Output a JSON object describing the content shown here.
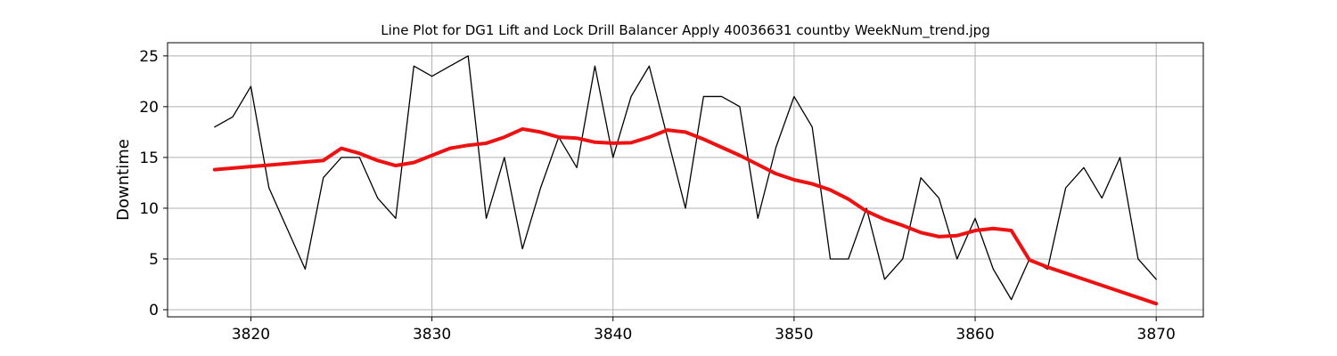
{
  "chart_data": {
    "type": "line",
    "title": "Line Plot for DG1 Lift and Lock Drill Balancer Apply 40036631 countby WeekNum_trend.jpg",
    "xlabel": "",
    "ylabel": "Downtime",
    "xlim": [
      3815.4,
      3872.6
    ],
    "ylim": [
      -0.7,
      26.3
    ],
    "x_ticks": [
      3820,
      3830,
      3840,
      3850,
      3860,
      3870
    ],
    "y_ticks": [
      0,
      5,
      10,
      15,
      20,
      25
    ],
    "grid": true,
    "series": [
      {
        "color": "#000000",
        "line_width": 1.3,
        "x": [
          3818,
          3819,
          3820,
          3821,
          3822,
          3823,
          3824,
          3825,
          3826,
          3827,
          3828,
          3829,
          3830,
          3831,
          3832,
          3833,
          3834,
          3835,
          3836,
          3837,
          3838,
          3839,
          3840,
          3841,
          3842,
          3843,
          3844,
          3845,
          3846,
          3847,
          3848,
          3849,
          3850,
          3851,
          3852,
          3853,
          3854,
          3855,
          3856,
          3857,
          3858,
          3859,
          3860,
          3861,
          3862,
          3863,
          3864,
          3865,
          3866,
          3867,
          3868,
          3869,
          3870
        ],
        "y": [
          18,
          19,
          22,
          12,
          8,
          4,
          13,
          15,
          15,
          11,
          9,
          24,
          23,
          24,
          25,
          9,
          15,
          6,
          12,
          17,
          14,
          24,
          15,
          21,
          24,
          17,
          10,
          21,
          21,
          20,
          9,
          16,
          21,
          18,
          5,
          5,
          10,
          3,
          5,
          13,
          11,
          5,
          9,
          4,
          1,
          5,
          4,
          12,
          14,
          11,
          15,
          5,
          3
        ]
      },
      {
        "color": "#ee1111",
        "line_width": 4,
        "x": [
          3818,
          3819,
          3820,
          3821,
          3822,
          3823,
          3824,
          3825,
          3826,
          3827,
          3828,
          3829,
          3830,
          3831,
          3832,
          3833,
          3834,
          3835,
          3836,
          3837,
          3838,
          3839,
          3840,
          3841,
          3842,
          3843,
          3844,
          3845,
          3846,
          3847,
          3848,
          3849,
          3850,
          3851,
          3852,
          3853,
          3854,
          3855,
          3856,
          3857,
          3858,
          3859,
          3860,
          3861,
          3862,
          3863,
          3864,
          3865,
          3866,
          3867,
          3868,
          3869,
          3870
        ],
        "y": [
          13.8,
          13.95,
          14.1,
          14.25,
          14.4,
          14.55,
          14.7,
          15.9,
          15.4,
          14.7,
          14.2,
          14.5,
          15.2,
          15.9,
          16.2,
          16.4,
          17.0,
          17.8,
          17.5,
          17.0,
          16.9,
          16.5,
          16.4,
          16.45,
          17.0,
          17.7,
          17.5,
          16.8,
          16.0,
          15.2,
          14.3,
          13.4,
          12.8,
          12.4,
          11.8,
          10.9,
          9.7,
          8.9,
          8.3,
          7.6,
          7.2,
          7.3,
          7.8,
          8.0,
          7.8,
          4.9,
          4.2,
          3.6,
          3.0,
          2.4,
          1.8,
          1.2,
          0.6
        ]
      }
    ]
  }
}
